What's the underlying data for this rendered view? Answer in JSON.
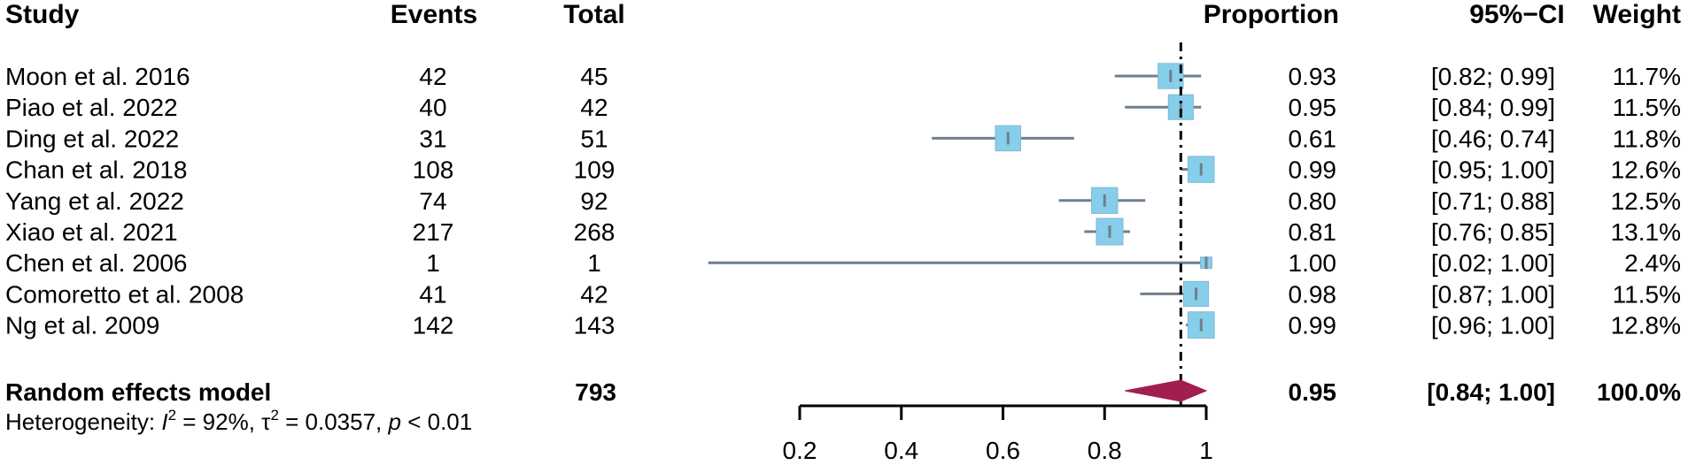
{
  "headers": {
    "study": "Study",
    "events": "Events",
    "total": "Total",
    "proportion": "Proportion",
    "ci": "95%−CI",
    "weight": "Weight"
  },
  "colors": {
    "box": "#87CEEB",
    "line": "#6E7F8E",
    "diamond": "#A01E50",
    "text": "#000000"
  },
  "chart_data": {
    "type": "forest",
    "xlim": [
      0.2,
      1.0
    ],
    "ticks": [
      0.2,
      0.4,
      0.6,
      0.8,
      1.0
    ],
    "tick_labels": [
      "0.2",
      "0.4",
      "0.6",
      "0.8",
      "1"
    ],
    "reference_line": 0.95,
    "studies": [
      {
        "study": "Moon et al. 2016",
        "events": "42",
        "total": "45",
        "prop": 0.93,
        "lower": 0.82,
        "upper": 0.99,
        "prop_label": "0.93",
        "ci_label": "[0.82; 0.99]",
        "weight": 11.7,
        "weight_label": "11.7%"
      },
      {
        "study": "Piao et al. 2022",
        "events": "40",
        "total": "42",
        "prop": 0.95,
        "lower": 0.84,
        "upper": 0.99,
        "prop_label": "0.95",
        "ci_label": "[0.84; 0.99]",
        "weight": 11.5,
        "weight_label": "11.5%"
      },
      {
        "study": "Ding et al. 2022",
        "events": "31",
        "total": "51",
        "prop": 0.61,
        "lower": 0.46,
        "upper": 0.74,
        "prop_label": "0.61",
        "ci_label": "[0.46; 0.74]",
        "weight": 11.8,
        "weight_label": "11.8%"
      },
      {
        "study": " Chan et al. 2018",
        "events": "108",
        "total": "109",
        "prop": 0.99,
        "lower": 0.95,
        "upper": 1.0,
        "prop_label": "0.99",
        "ci_label": "[0.95; 1.00]",
        "weight": 12.6,
        "weight_label": "12.6%"
      },
      {
        "study": "Yang et al. 2022",
        "events": "74",
        "total": "92",
        "prop": 0.8,
        "lower": 0.71,
        "upper": 0.88,
        "prop_label": "0.80",
        "ci_label": "[0.71; 0.88]",
        "weight": 12.5,
        "weight_label": "12.5%"
      },
      {
        "study": "Xiao et al. 2021",
        "events": "217",
        "total": "268",
        "prop": 0.81,
        "lower": 0.76,
        "upper": 0.85,
        "prop_label": "0.81",
        "ci_label": "[0.76; 0.85]",
        "weight": 13.1,
        "weight_label": "13.1%"
      },
      {
        "study": "Chen et al. 2006",
        "events": "1",
        "total": "1",
        "prop": 1.0,
        "lower": 0.02,
        "upper": 1.0,
        "prop_label": "1.00",
        "ci_label": "[0.02; 1.00]",
        "weight": 2.4,
        "weight_label": "2.4%"
      },
      {
        "study": "Comoretto  et al. 2008",
        "events": "41",
        "total": "42",
        "prop": 0.98,
        "lower": 0.87,
        "upper": 1.0,
        "prop_label": "0.98",
        "ci_label": "[0.87; 1.00]",
        "weight": 11.5,
        "weight_label": "11.5%"
      },
      {
        "study": "Ng et al. 2009",
        "events": "142",
        "total": "143",
        "prop": 0.99,
        "lower": 0.96,
        "upper": 1.0,
        "prop_label": "0.99",
        "ci_label": "[0.96; 1.00]",
        "weight": 12.8,
        "weight_label": "12.8%"
      }
    ],
    "summary": {
      "label": "Random effects model",
      "total": "793",
      "prop": 0.95,
      "lower": 0.84,
      "upper": 1.0,
      "prop_label": "0.95",
      "ci_label": "[0.84; 1.00]",
      "weight_label": "100.0%"
    },
    "heterogeneity": {
      "prefix": "Heterogeneity: ",
      "i2_symbol": "I",
      "i2_sup": "2",
      "i2_value": " = 92%, ",
      "tau_symbol": "τ",
      "tau_sup": "2",
      "tau_value": " = 0.0357, ",
      "p_symbol": "p",
      "p_value": " < 0.01"
    }
  }
}
